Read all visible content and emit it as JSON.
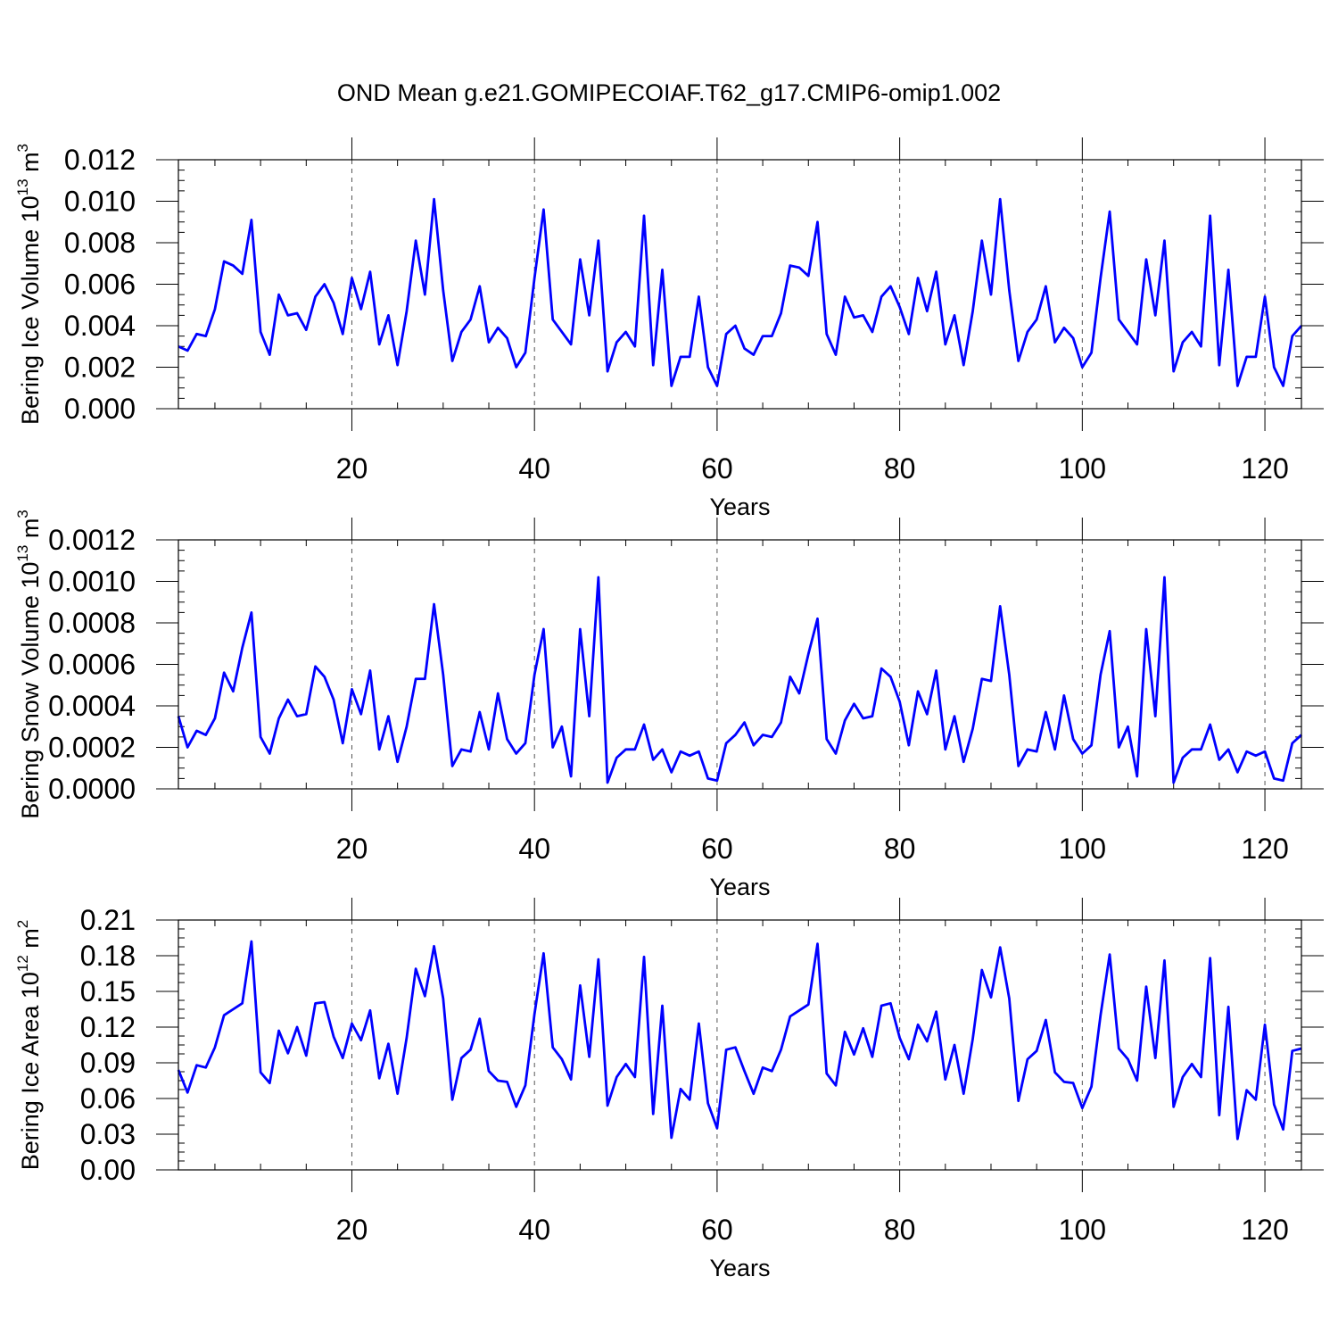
{
  "figure_title": "OND Mean g.e21.GOMIPECOIAF.T62_g17.CMIP6-omip1.002",
  "line_color": "#0000ff",
  "chart_data": [
    {
      "type": "line",
      "ylabel_prefix": "Bering Ice Volume 10",
      "ylabel_exp": "13",
      "ylabel_unit": " m",
      "ylabel_unit_exp": "3",
      "xlabel": "Years",
      "xlim": [
        1,
        124
      ],
      "ylim": [
        0,
        0.012
      ],
      "xticks": [
        20,
        40,
        60,
        80,
        100,
        120
      ],
      "xtick_labels": [
        "20",
        "40",
        "60",
        "80",
        "100",
        "120"
      ],
      "yticks": [
        0,
        0.002,
        0.004,
        0.006,
        0.008,
        0.01,
        0.012
      ],
      "ytick_labels": [
        "0.000",
        "0.002",
        "0.004",
        "0.006",
        "0.008",
        "0.010",
        "0.012"
      ],
      "grid": "vertical dashed at major x ticks",
      "series": [
        {
          "x_start": 1,
          "values": [
            0.003,
            0.0028,
            0.0036,
            0.0035,
            0.0048,
            0.0071,
            0.0069,
            0.0065,
            0.0091,
            0.0037,
            0.0026,
            0.0055,
            0.0045,
            0.0046,
            0.0038,
            0.0054,
            0.006,
            0.0051,
            0.0036,
            0.0063,
            0.0048,
            0.0066,
            0.0031,
            0.0045,
            0.0021,
            0.0047,
            0.0081,
            0.0055,
            0.0101,
            0.0057,
            0.0023,
            0.0037,
            0.0043,
            0.0059,
            0.0032,
            0.0039,
            0.0034,
            0.002,
            0.0027,
            0.0063,
            0.0096,
            0.0043,
            0.0037,
            0.0031,
            0.0072,
            0.0045,
            0.0081,
            0.0018,
            0.0032,
            0.0037,
            0.003,
            0.0093,
            0.0021,
            0.0067,
            0.0011,
            0.0025,
            0.0025,
            0.0054,
            0.002,
            0.0011,
            0.0036,
            0.004,
            0.0029,
            0.0026,
            0.0035,
            0.0035,
            0.0046,
            0.0069,
            0.0068,
            0.0064,
            0.009,
            0.0036,
            0.0026,
            0.0054,
            0.0044,
            0.0045,
            0.0037,
            0.0054,
            0.0059,
            0.0049,
            0.0036,
            0.0063,
            0.0047,
            0.0066,
            0.0031,
            0.0045,
            0.0021,
            0.0047,
            0.0081,
            0.0055,
            0.0101,
            0.0057,
            0.0023,
            0.0037,
            0.0043,
            0.0059,
            0.0032,
            0.0039,
            0.0034,
            0.002,
            0.0027,
            0.0063,
            0.0095,
            0.0043,
            0.0037,
            0.0031,
            0.0072,
            0.0045,
            0.0081,
            0.0018,
            0.0032,
            0.0037,
            0.003,
            0.0093,
            0.0021,
            0.0067,
            0.0011,
            0.0025,
            0.0025,
            0.0054,
            0.002,
            0.0011,
            0.0035,
            0.004
          ]
        }
      ]
    },
    {
      "type": "line",
      "ylabel_prefix": "Bering Snow Volume 10",
      "ylabel_exp": "13",
      "ylabel_unit": " m",
      "ylabel_unit_exp": "3",
      "xlabel": "Years",
      "xlim": [
        1,
        124
      ],
      "ylim": [
        0,
        0.0012
      ],
      "xticks": [
        20,
        40,
        60,
        80,
        100,
        120
      ],
      "xtick_labels": [
        "20",
        "40",
        "60",
        "80",
        "100",
        "120"
      ],
      "yticks": [
        0,
        0.0002,
        0.0004,
        0.0006,
        0.0008,
        0.001,
        0.0012
      ],
      "ytick_labels": [
        "0.0000",
        "0.0002",
        "0.0004",
        "0.0006",
        "0.0008",
        "0.0010",
        "0.0012"
      ],
      "grid": "vertical dashed at major x ticks",
      "series": [
        {
          "x_start": 1,
          "values": [
            0.00035,
            0.0002,
            0.00028,
            0.00026,
            0.00034,
            0.00056,
            0.00047,
            0.00068,
            0.00085,
            0.00025,
            0.00017,
            0.00034,
            0.00043,
            0.00035,
            0.00036,
            0.00059,
            0.00054,
            0.00043,
            0.00022,
            0.00048,
            0.00036,
            0.00057,
            0.00019,
            0.00035,
            0.00013,
            0.0003,
            0.00053,
            0.00053,
            0.00089,
            0.00055,
            0.00011,
            0.00019,
            0.00018,
            0.00037,
            0.00019,
            0.00046,
            0.00024,
            0.00017,
            0.00022,
            0.00055,
            0.00077,
            0.0002,
            0.0003,
            6e-05,
            0.00077,
            0.00035,
            0.00102,
            3e-05,
            0.00015,
            0.00019,
            0.00019,
            0.00031,
            0.00014,
            0.00019,
            8e-05,
            0.00018,
            0.00016,
            0.00018,
            5e-05,
            4e-05,
            0.00022,
            0.00026,
            0.00032,
            0.00021,
            0.00026,
            0.00025,
            0.00032,
            0.00054,
            0.00046,
            0.00065,
            0.00082,
            0.00024,
            0.00017,
            0.00033,
            0.00041,
            0.00034,
            0.00035,
            0.00058,
            0.00054,
            0.00042,
            0.00021,
            0.00047,
            0.00036,
            0.00057,
            0.00019,
            0.00035,
            0.00013,
            0.00029,
            0.00053,
            0.00052,
            0.00088,
            0.00055,
            0.00011,
            0.00019,
            0.00018,
            0.00037,
            0.00019,
            0.00045,
            0.00024,
            0.00017,
            0.00021,
            0.00055,
            0.00076,
            0.0002,
            0.0003,
            6e-05,
            0.00077,
            0.00035,
            0.00102,
            3e-05,
            0.00015,
            0.00019,
            0.00019,
            0.00031,
            0.00014,
            0.00019,
            8e-05,
            0.00018,
            0.00016,
            0.00018,
            5e-05,
            4e-05,
            0.00022,
            0.00026
          ]
        }
      ]
    },
    {
      "type": "line",
      "ylabel_prefix": "Bering Ice Area 10",
      "ylabel_exp": "12",
      "ylabel_unit": " m",
      "ylabel_unit_exp": "2",
      "xlabel": "Years",
      "xlim": [
        1,
        124
      ],
      "ylim": [
        0,
        0.21
      ],
      "xticks": [
        20,
        40,
        60,
        80,
        100,
        120
      ],
      "xtick_labels": [
        "20",
        "40",
        "60",
        "80",
        "100",
        "120"
      ],
      "yticks": [
        0,
        0.03,
        0.06,
        0.09,
        0.12,
        0.15,
        0.18,
        0.21
      ],
      "ytick_labels": [
        "0.00",
        "0.03",
        "0.06",
        "0.09",
        "0.12",
        "0.15",
        "0.18",
        "0.21"
      ],
      "grid": "vertical dashed at major x ticks",
      "series": [
        {
          "x_start": 1,
          "values": [
            0.084,
            0.065,
            0.088,
            0.086,
            0.103,
            0.13,
            0.135,
            0.14,
            0.192,
            0.082,
            0.073,
            0.117,
            0.098,
            0.12,
            0.096,
            0.14,
            0.141,
            0.112,
            0.094,
            0.123,
            0.109,
            0.134,
            0.077,
            0.106,
            0.064,
            0.111,
            0.169,
            0.146,
            0.188,
            0.144,
            0.059,
            0.094,
            0.101,
            0.127,
            0.083,
            0.075,
            0.074,
            0.053,
            0.071,
            0.131,
            0.182,
            0.103,
            0.093,
            0.076,
            0.155,
            0.095,
            0.177,
            0.054,
            0.078,
            0.089,
            0.078,
            0.179,
            0.047,
            0.138,
            0.027,
            0.068,
            0.059,
            0.123,
            0.056,
            0.035,
            0.101,
            0.103,
            0.083,
            0.064,
            0.086,
            0.083,
            0.101,
            0.129,
            0.134,
            0.139,
            0.19,
            0.081,
            0.071,
            0.116,
            0.097,
            0.119,
            0.095,
            0.138,
            0.14,
            0.111,
            0.093,
            0.122,
            0.108,
            0.133,
            0.076,
            0.105,
            0.064,
            0.11,
            0.168,
            0.145,
            0.187,
            0.144,
            0.058,
            0.093,
            0.1,
            0.126,
            0.082,
            0.074,
            0.073,
            0.052,
            0.07,
            0.13,
            0.181,
            0.102,
            0.093,
            0.075,
            0.154,
            0.094,
            0.176,
            0.053,
            0.078,
            0.089,
            0.078,
            0.178,
            0.046,
            0.137,
            0.026,
            0.067,
            0.059,
            0.122,
            0.055,
            0.034,
            0.1,
            0.102
          ]
        }
      ]
    }
  ]
}
